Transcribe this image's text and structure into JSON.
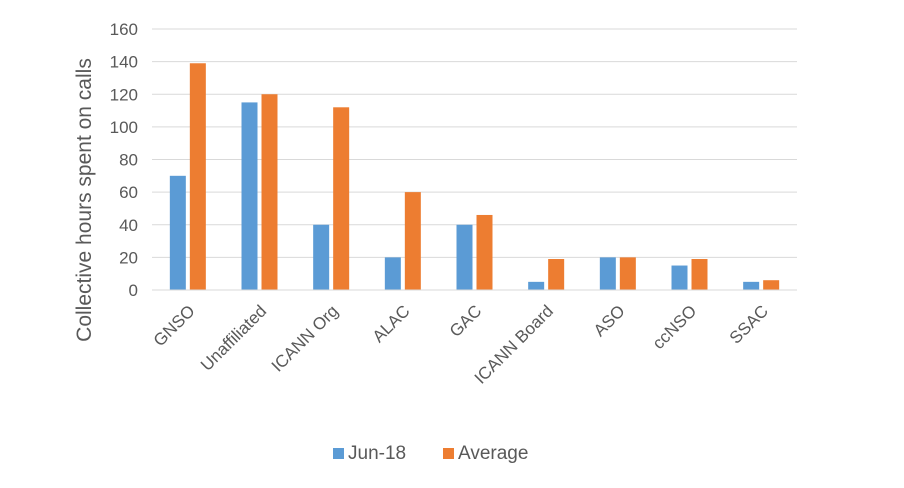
{
  "chart_data": {
    "type": "bar",
    "categories": [
      "GNSO",
      "Unaffiliated",
      "ICANN Org",
      "ALAC",
      "GAC",
      "ICANN Board",
      "ASO",
      "ccNSO",
      "SSAC"
    ],
    "series": [
      {
        "name": "Jun-18",
        "values": [
          70,
          115,
          40,
          20,
          40,
          5,
          20,
          15,
          5
        ],
        "color": "#5B9BD5"
      },
      {
        "name": "Average",
        "values": [
          139,
          120,
          112,
          60,
          46,
          19,
          20,
          19,
          6
        ],
        "color": "#ED7D31"
      }
    ],
    "xlabel": "",
    "ylabel": "Collective hours spent on calls",
    "ylim": [
      0,
      160
    ],
    "yticks": [
      0,
      20,
      40,
      60,
      80,
      100,
      120,
      140,
      160
    ],
    "grid": true,
    "legend_position": "bottom"
  }
}
